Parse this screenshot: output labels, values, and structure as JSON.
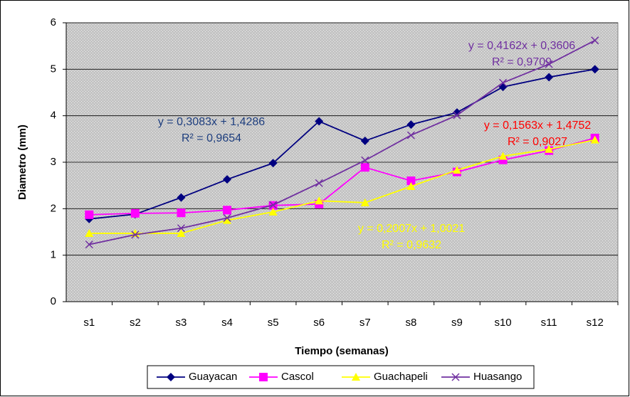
{
  "chart_data": {
    "type": "line",
    "xlabel": "Tiempo (semanas)",
    "ylabel": "Diametro (mm)",
    "categories": [
      "s1",
      "s2",
      "s3",
      "s4",
      "s5",
      "s6",
      "s7",
      "s8",
      "s9",
      "s10",
      "s11",
      "s12"
    ],
    "series": [
      {
        "name": "Guayacan",
        "color": "#000080",
        "marker": "diamond",
        "values": [
          1.78,
          1.88,
          2.24,
          2.63,
          2.98,
          3.88,
          3.46,
          3.81,
          4.07,
          4.62,
          4.83,
          5.0
        ]
      },
      {
        "name": "Cascol",
        "color": "#ff00ff",
        "marker": "square",
        "values": [
          1.87,
          1.9,
          1.91,
          1.97,
          2.07,
          2.1,
          2.89,
          2.6,
          2.79,
          3.05,
          3.25,
          3.52
        ]
      },
      {
        "name": "Guachapeli",
        "color": "#ffff00",
        "marker": "triangle",
        "values": [
          1.47,
          1.47,
          1.47,
          1.75,
          1.93,
          2.17,
          2.13,
          2.48,
          2.83,
          3.13,
          3.28,
          3.48
        ]
      },
      {
        "name": "Huasango",
        "color": "#7030a0",
        "marker": "x",
        "values": [
          1.23,
          1.44,
          1.58,
          1.8,
          2.08,
          2.55,
          3.04,
          3.58,
          4.01,
          4.71,
          5.11,
          5.62
        ]
      }
    ],
    "annotations": [
      {
        "lines": [
          "y = 0,3083x + 1,4286",
          "R² = 0,9654"
        ],
        "color": "#1f3f7f"
      },
      {
        "lines": [
          "y = 0,4162x + 0,3606",
          "R² = 0,9709"
        ],
        "color": "#7030a0"
      },
      {
        "lines": [
          "y = 0,1563x + 1,4752",
          "R² = 0,9027"
        ],
        "color": "#ff0000"
      },
      {
        "lines": [
          "y = 0,2007x + 1,0021",
          "R² = 0,9632"
        ],
        "color": "#ffff00"
      }
    ],
    "ylim": [
      0,
      6
    ],
    "yticks": [
      0,
      1,
      2,
      3,
      4,
      5,
      6
    ],
    "grid": true,
    "legend": "bottom"
  }
}
